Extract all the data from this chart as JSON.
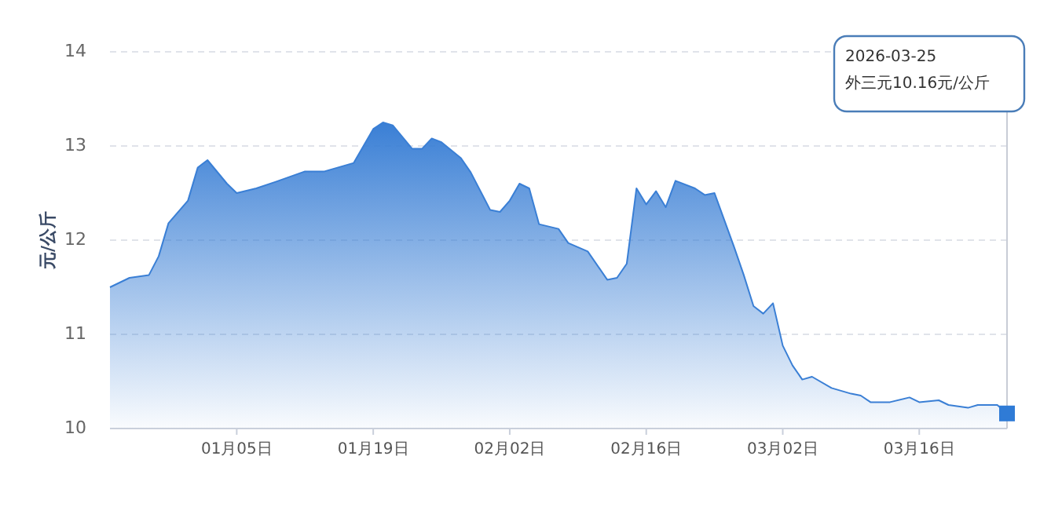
{
  "chart_data": {
    "type": "area",
    "ylabel": "元/公斤",
    "xlim": [
      "2025-12-23",
      "2026-03-25"
    ],
    "ylim": [
      10,
      14
    ],
    "yticks": [
      10,
      11,
      12,
      13,
      14
    ],
    "xticks": [
      {
        "value": "2026-01-05",
        "label": "01月05日"
      },
      {
        "value": "2026-01-19",
        "label": "01月19日"
      },
      {
        "value": "2026-02-02",
        "label": "02月02日"
      },
      {
        "value": "2026-02-16",
        "label": "02月16日"
      },
      {
        "value": "2026-03-02",
        "label": "03月02日"
      },
      {
        "value": "2026-03-16",
        "label": "03月16日"
      }
    ],
    "grid": "y",
    "x": [
      "2025-12-23",
      "2025-12-25",
      "2025-12-27",
      "2025-12-28",
      "2025-12-29",
      "2025-12-31",
      "2026-01-01",
      "2026-01-02",
      "2026-01-04",
      "2026-01-05",
      "2026-01-07",
      "2026-01-09",
      "2026-01-12",
      "2026-01-14",
      "2026-01-17",
      "2026-01-19",
      "2026-01-20",
      "2026-01-21",
      "2026-01-23",
      "2026-01-24",
      "2026-01-25",
      "2026-01-26",
      "2026-01-28",
      "2026-01-29",
      "2026-01-31",
      "2026-02-01",
      "2026-02-02",
      "2026-02-03",
      "2026-02-04",
      "2026-02-05",
      "2026-02-07",
      "2026-02-08",
      "2026-02-10",
      "2026-02-12",
      "2026-02-13",
      "2026-02-14",
      "2026-02-15",
      "2026-02-16",
      "2026-02-17",
      "2026-02-18",
      "2026-02-19",
      "2026-02-21",
      "2026-02-22",
      "2026-02-23",
      "2026-02-25",
      "2026-02-26",
      "2026-02-27",
      "2026-02-28",
      "2026-03-01",
      "2026-03-02",
      "2026-03-03",
      "2026-03-04",
      "2026-03-05",
      "2026-03-07",
      "2026-03-09",
      "2026-03-10",
      "2026-03-11",
      "2026-03-13",
      "2026-03-15",
      "2026-03-16",
      "2026-03-18",
      "2026-03-19",
      "2026-03-21",
      "2026-03-22",
      "2026-03-24",
      "2026-03-25"
    ],
    "series": [
      {
        "color": "#3a7fd5",
        "values": [
          11.5,
          11.6,
          11.63,
          11.83,
          12.18,
          12.42,
          12.77,
          12.85,
          12.6,
          12.5,
          12.55,
          12.62,
          12.73,
          12.73,
          12.82,
          13.18,
          13.25,
          13.22,
          12.97,
          12.97,
          13.08,
          13.04,
          12.87,
          12.72,
          12.32,
          12.3,
          12.42,
          12.6,
          12.55,
          12.17,
          12.12,
          11.97,
          11.88,
          11.58,
          11.6,
          11.75,
          12.55,
          12.38,
          12.52,
          12.35,
          12.63,
          12.55,
          12.48,
          12.5,
          11.93,
          11.63,
          11.3,
          11.22,
          11.33,
          10.88,
          10.67,
          10.52,
          10.55,
          10.43,
          10.37,
          10.35,
          10.28,
          10.28,
          10.33,
          10.28,
          10.3,
          10.25,
          10.22,
          10.25,
          10.25,
          10.16
        ]
      }
    ],
    "annotations": [
      "2026-03-25\n外三元10.16元/公斤"
    ]
  }
}
